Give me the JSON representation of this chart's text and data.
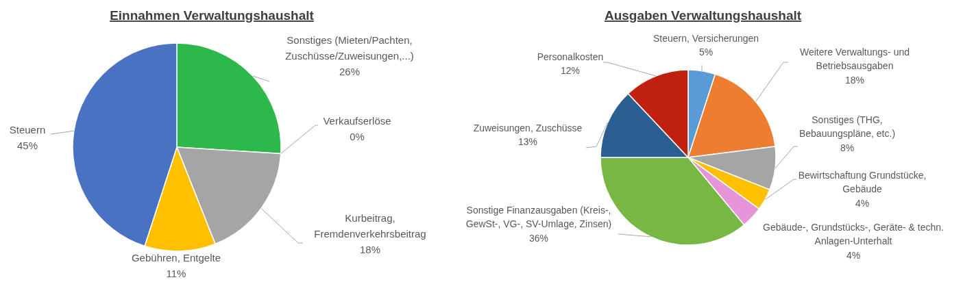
{
  "chart_data": [
    {
      "type": "pie",
      "title": "Einnahmen Verwaltungshaushalt",
      "categories": [
        "Sonstiges (Mieten/Pachten, Zuschüsse/Zuweisungen,...)",
        "Verkaufserlöse",
        "Kurbeitrag, Fremdenverkehrsbeitrag",
        "Gebühren, Entgelte",
        "Steuern"
      ],
      "values": [
        26,
        0,
        18,
        11,
        45
      ],
      "colors": [
        "#2db84c",
        "#f2ead8",
        "#a5a5a5",
        "#ffc000",
        "#4a72c2"
      ],
      "value_labels": [
        "26%",
        "0%",
        "18%",
        "11%",
        "45%"
      ]
    },
    {
      "type": "pie",
      "title": "Ausgaben Verwaltungshaushalt",
      "categories": [
        "Steuern, Versicherungen",
        "Weitere Verwaltungs- und Betriebsausgaben",
        "Sonstiges (THG, Bebauungspläne, etc.)",
        "Bewirtschaftung Grundstücke, Gebäude",
        "Gebäude-, Grundstücks-, Geräte- & techn. Anlagen-Unterhalt",
        "Sonstige Finanzausgaben (Kreis-, GewSt-, VG-, SV-Umlage, Zinsen)",
        "Zuweisungen, Zuschüsse",
        "Personalkosten"
      ],
      "values": [
        5,
        18,
        8,
        4,
        4,
        36,
        13,
        12
      ],
      "colors": [
        "#5b9bd5",
        "#ed7d31",
        "#a5a5a5",
        "#ffc000",
        "#e795d9",
        "#76b843",
        "#2b5f91",
        "#c0200f"
      ],
      "value_labels": [
        "5%",
        "18%",
        "8%",
        "4%",
        "4%",
        "36%",
        "13%",
        "12%"
      ]
    }
  ]
}
